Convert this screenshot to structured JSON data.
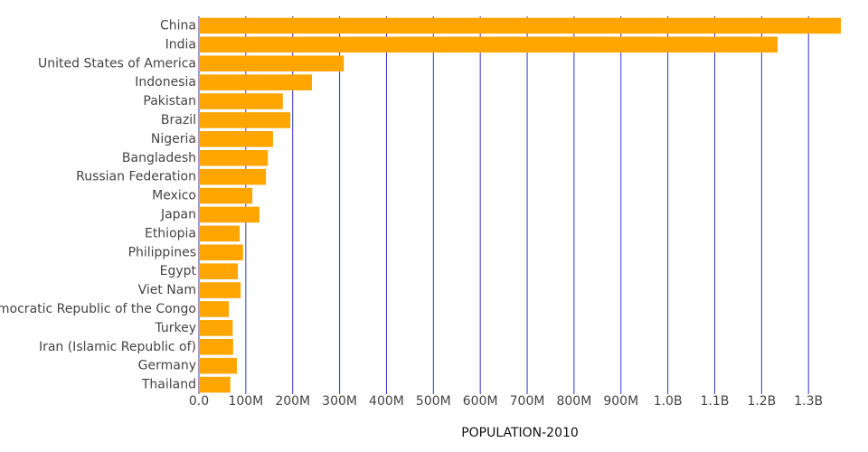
{
  "chart_data": {
    "type": "hbar",
    "x_label": "POPULATION-2010",
    "categories": [
      "China",
      "India",
      "United States of America",
      "Indonesia",
      "Pakistan",
      "Brazil",
      "Nigeria",
      "Bangladesh",
      "Russian Federation",
      "Mexico",
      "Japan",
      "Ethiopia",
      "Philippines",
      "Egypt",
      "Viet Nam",
      "Democratic Republic of the Congo",
      "Turkey",
      "Iran (Islamic Republic of)",
      "Germany",
      "Thailand"
    ],
    "values": [
      1369000000,
      1234000000,
      309000000,
      241000000,
      179000000,
      195000000,
      158000000,
      147000000,
      143000000,
      114000000,
      129000000,
      87000000,
      94000000,
      83000000,
      89000000,
      64000000,
      72000000,
      73000000,
      81000000,
      67000000
    ],
    "color": "#ffa500",
    "xlim": [
      0,
      1369000000
    ],
    "xticks": [
      {
        "value": 0,
        "label": "0.0"
      },
      {
        "value": 100000000,
        "label": "100M"
      },
      {
        "value": 200000000,
        "label": "200M"
      },
      {
        "value": 300000000,
        "label": "300M"
      },
      {
        "value": 400000000,
        "label": "400M"
      },
      {
        "value": 500000000,
        "label": "500M"
      },
      {
        "value": 600000000,
        "label": "600M"
      },
      {
        "value": 700000000,
        "label": "700M"
      },
      {
        "value": 800000000,
        "label": "800M"
      },
      {
        "value": 900000000,
        "label": "900M"
      },
      {
        "value": 1000000000,
        "label": "1.0B"
      },
      {
        "value": 1100000000,
        "label": "1.1B"
      },
      {
        "value": 1200000000,
        "label": "1.2B"
      },
      {
        "value": 1300000000,
        "label": "1.3B"
      }
    ],
    "grid": true,
    "grid_color": "#3434c8"
  }
}
